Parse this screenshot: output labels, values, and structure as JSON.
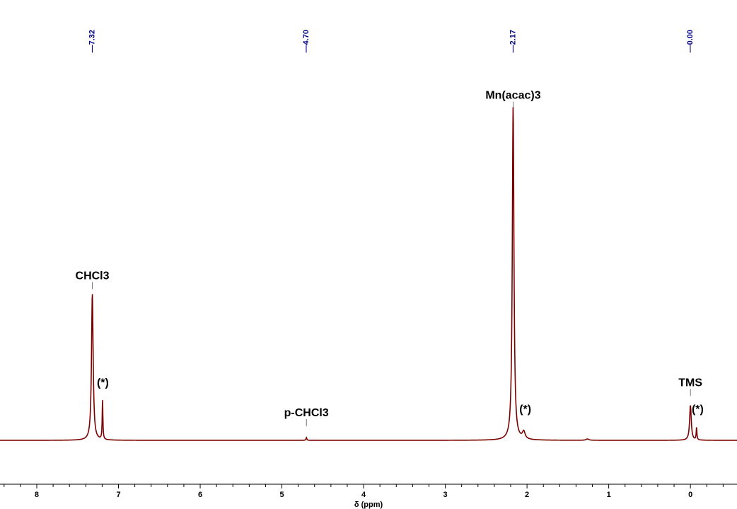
{
  "chart_data": {
    "type": "line",
    "title": "",
    "xlabel": "δ (ppm)",
    "ylabel": "",
    "x_reversed": true,
    "xlim": [
      8.45,
      -0.57
    ],
    "ylim": [
      -0.11,
      1.02
    ],
    "grid": false,
    "legend": "none",
    "x_ticks": [
      8,
      7,
      6,
      5,
      4,
      3,
      2,
      1,
      0
    ],
    "x_tick_labels": [
      "8",
      "7",
      "6",
      "5",
      "4",
      "3",
      "2",
      "1",
      "0"
    ],
    "peak_picks": [
      {
        "ppm": 7.32,
        "label": "7.32"
      },
      {
        "ppm": 4.7,
        "label": "4.70"
      },
      {
        "ppm": 2.17,
        "label": "2.17"
      },
      {
        "ppm": 0.0,
        "label": "0.00"
      }
    ],
    "annotations": [
      {
        "text": "CHCl3",
        "ppm": 7.32,
        "y": 0.44
      },
      {
        "text": "(*)",
        "ppm": 7.2,
        "y": 0.12
      },
      {
        "text": "p-CHCl3",
        "ppm": 4.7,
        "y": 0.03
      },
      {
        "text": "Mn(acac)3",
        "ppm": 2.17,
        "y": 0.98
      },
      {
        "text": "(*)",
        "ppm": 2.03,
        "y": 0.04
      },
      {
        "text": "TMS",
        "ppm": 0.0,
        "y": 0.12
      },
      {
        "text": "(*)",
        "ppm": -0.08,
        "y": 0.04
      }
    ],
    "series": [
      {
        "peaks": [
          {
            "ppm": 7.32,
            "height": 0.44,
            "width": 0.012
          },
          {
            "ppm": 7.195,
            "height": 0.12,
            "width": 0.005
          },
          {
            "ppm": 4.7,
            "height": 0.008,
            "width": 0.006
          },
          {
            "ppm": 2.17,
            "height": 1.0,
            "width": 0.012
          },
          {
            "ppm": 2.04,
            "height": 0.022,
            "width": 0.02
          },
          {
            "ppm": 1.26,
            "height": 0.004,
            "width": 0.02
          },
          {
            "ppm": 0.0,
            "height": 0.105,
            "width": 0.012
          },
          {
            "ppm": -0.075,
            "height": 0.038,
            "width": 0.005
          }
        ]
      }
    ],
    "color": "#7a0000",
    "pick_color": "#00008b"
  }
}
